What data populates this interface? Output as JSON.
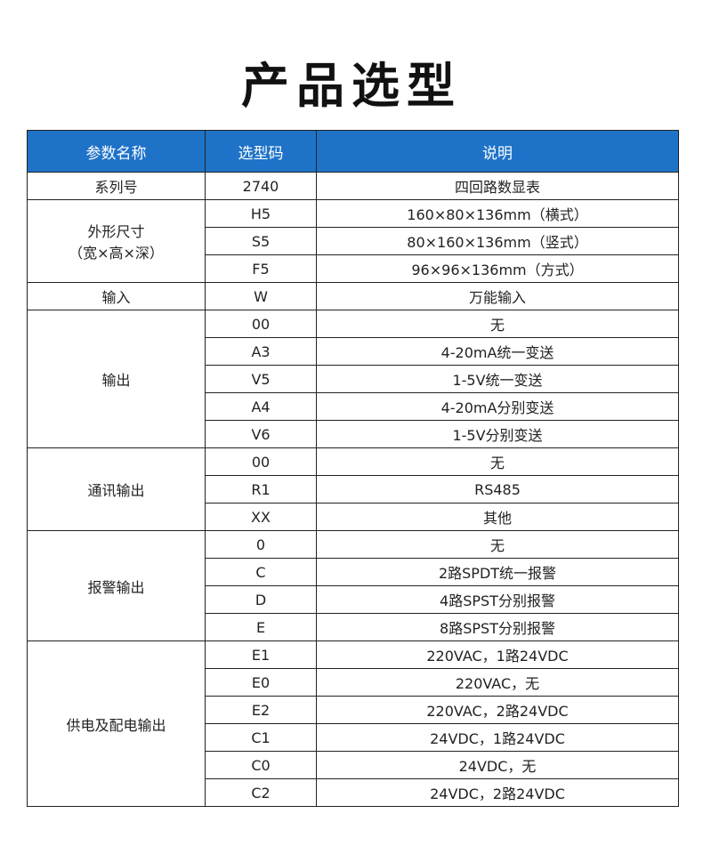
{
  "title": "产品选型",
  "header": [
    "参数名称",
    "选型码",
    "说明"
  ],
  "groups": [
    {
      "name": "系列号",
      "rows": [
        [
          "2740",
          "四回路数显表"
        ]
      ]
    },
    {
      "name": "外形尺寸\n（宽×高×深）",
      "rows": [
        [
          "H5",
          "160×80×136mm（横式）"
        ],
        [
          "S5",
          "80×160×136mm（竖式）"
        ],
        [
          "F5",
          "96×96×136mm（方式）"
        ]
      ]
    },
    {
      "name": "输入",
      "rows": [
        [
          "W",
          "万能输入"
        ]
      ]
    },
    {
      "name": "输出",
      "rows": [
        [
          "00",
          "无"
        ],
        [
          "A3",
          "4-20mA统一变送"
        ],
        [
          "V5",
          "1-5V统一变送"
        ],
        [
          "A4",
          "4-20mA分别变送"
        ],
        [
          "V6",
          "1-5V分别变送"
        ]
      ]
    },
    {
      "name": "通讯输出",
      "rows": [
        [
          "00",
          "无"
        ],
        [
          "R1",
          "RS485"
        ],
        [
          "XX",
          "其他"
        ]
      ]
    },
    {
      "name": "报警输出",
      "rows": [
        [
          "0",
          "无"
        ],
        [
          "C",
          "2路SPDT统一报警"
        ],
        [
          "D",
          "4路SPST分别报警"
        ],
        [
          "E",
          "8路SPST分别报警"
        ]
      ]
    },
    {
      "name": "供电及配电输出",
      "rows": [
        [
          "E1",
          "220VAC，1路24VDC"
        ],
        [
          "E0",
          "220VAC，无"
        ],
        [
          "E2",
          "220VAC，2路24VDC"
        ],
        [
          "C1",
          "24VDC，1路24VDC"
        ],
        [
          "C0",
          "24VDC，无"
        ],
        [
          "C2",
          "24VDC，2路24VDC"
        ]
      ]
    }
  ],
  "colors": {
    "header_bg": "#1e73c8"
  }
}
